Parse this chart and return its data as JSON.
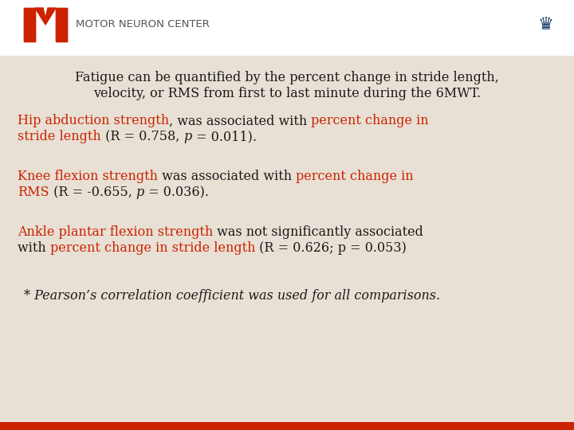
{
  "bg_color": "#ffffff",
  "content_bg": "#e8e0d5",
  "header_bg": "#ffffff",
  "red_color": "#cc2200",
  "dark_red": "#8b1a0a",
  "black_color": "#1a1a1a",
  "logo_red": "#cc2200",
  "logo_blue": "#1a3a6b",
  "title_line1": "Fatigue can be quantified by the percent change in stride length,",
  "title_line2": "velocity, or RMS from first to last minute during the 6MWT.",
  "para1_seg1": "Hip abduction strength",
  "para1_seg2": ", was associated with ",
  "para1_seg3": "percent change in",
  "para1_seg4_line2_red": "stride length",
  "para1_seg4_line2_black": " (R = 0.758, ",
  "para1_seg4_italic": "p",
  "para1_seg4_end": " = 0.011).",
  "para2_seg1": "Knee flexion strength",
  "para2_seg2": " was associated with ",
  "para2_seg3": "percent change in",
  "para2_seg4_line2_red": "RMS",
  "para2_seg4_line2_black": " (R = -0.655, ",
  "para2_seg4_italic": "p",
  "para2_seg4_end": " = 0.036).",
  "para3_seg1": "Ankle plantar flexion strength",
  "para3_seg2": " was not significantly associated",
  "para3_seg3_line2_black": "with ",
  "para3_seg3_line2_red": "percent change in stride length",
  "para3_seg3_end": " (R = 0.626; p = 0.053)",
  "footer": "* Pearson’s correlation coefficient was used for all comparisons.",
  "motor_neuron_text": "MOTOR NEURON CENTER"
}
